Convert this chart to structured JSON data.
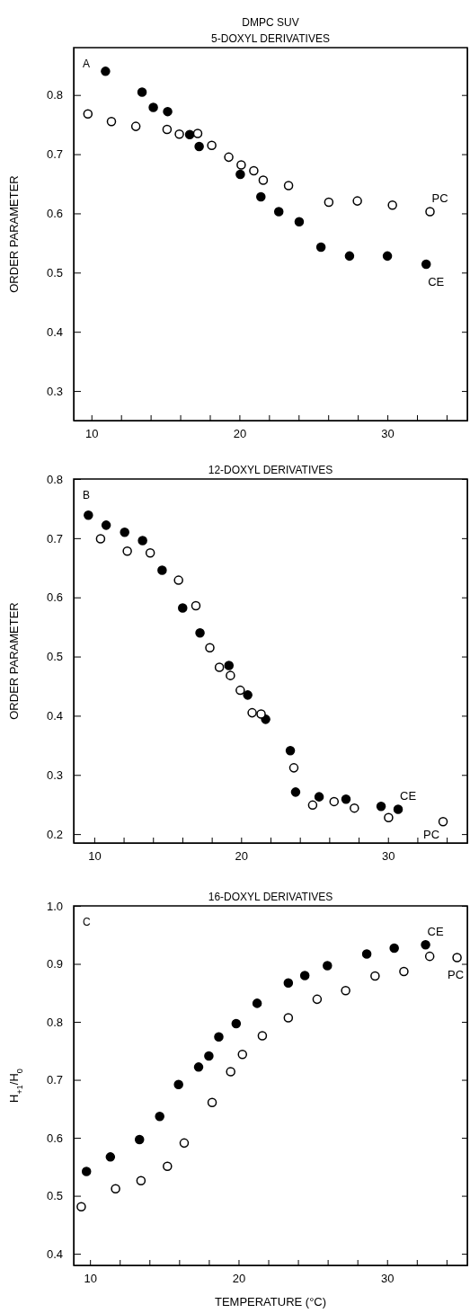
{
  "chart_data": [
    {
      "type": "scatter",
      "title": "DMPC SUV",
      "subtitle": "5-DOXYL DERIVATIVES",
      "ylabel": "ORDER PARAMETER",
      "annotations": [
        "A"
      ],
      "marker": "circle",
      "xlim": [
        8.8,
        35.4
      ],
      "ylim": [
        0.25,
        0.88
      ],
      "xticks": [
        10,
        {
          "value": 12,
          "label": null
        },
        {
          "value": 14,
          "label": null
        },
        {
          "value": 16,
          "label": null
        },
        {
          "value": 18,
          "label": null
        },
        20,
        {
          "value": 22,
          "label": null
        },
        {
          "value": 24,
          "label": null
        },
        {
          "value": 26,
          "label": null
        },
        {
          "value": 28,
          "label": null
        },
        30,
        {
          "value": 32,
          "label": null
        },
        {
          "value": 34,
          "label": null
        }
      ],
      "yticks": [
        0.3,
        0.4,
        0.5,
        0.6,
        0.7,
        0.8
      ],
      "series": [
        {
          "name": "CE",
          "color": "#000000",
          "x": [
            10.95,
            13.42,
            14.18,
            15.15,
            16.64,
            17.28,
            20.06,
            21.45,
            22.66,
            24.04,
            25.51,
            27.44,
            30.0,
            32.62
          ],
          "values": [
            0.84,
            0.805,
            0.779,
            0.772,
            0.733,
            0.713,
            0.666,
            0.628,
            0.603,
            0.586,
            0.543,
            0.528,
            0.528,
            0.514
          ]
        },
        {
          "name": "PC",
          "color": "#ffffff",
          "x": [
            9.76,
            11.35,
            13.0,
            15.11,
            15.94,
            17.18,
            18.13,
            19.28,
            20.12,
            20.97,
            21.61,
            23.32,
            26.04,
            27.97,
            30.34,
            32.88
          ],
          "values": [
            0.768,
            0.755,
            0.747,
            0.742,
            0.734,
            0.735,
            0.715,
            0.695,
            0.682,
            0.672,
            0.656,
            0.647,
            0.619,
            0.621,
            0.614,
            0.603
          ]
        }
      ]
    },
    {
      "type": "scatter",
      "title": "12-DOXYL DERIVATIVES",
      "ylabel": "ORDER PARAMETER",
      "annotations": [
        "B"
      ],
      "marker": "circle",
      "xlim": [
        8.6,
        35.4
      ],
      "ylim": [
        0.185,
        0.8
      ],
      "xticks": [
        10,
        {
          "value": 12,
          "label": null
        },
        {
          "value": 14,
          "label": null
        },
        {
          "value": 16,
          "label": null
        },
        {
          "value": 18,
          "label": null
        },
        20,
        {
          "value": 22,
          "label": null
        },
        {
          "value": 24,
          "label": null
        },
        {
          "value": 26,
          "label": null
        },
        {
          "value": 28,
          "label": null
        },
        30,
        {
          "value": 32,
          "label": null
        },
        {
          "value": 34,
          "label": null
        }
      ],
      "yticks": [
        0.2,
        0.3,
        0.4,
        0.5,
        0.6,
        0.7,
        0.8
      ],
      "series": [
        {
          "name": "CE",
          "color": "#000000",
          "x": [
            9.6,
            10.81,
            12.07,
            13.29,
            14.62,
            16.02,
            17.2,
            19.17,
            20.45,
            21.67,
            23.35,
            23.71,
            25.31,
            27.14,
            29.53,
            30.69
          ],
          "values": [
            0.739,
            0.722,
            0.71,
            0.696,
            0.646,
            0.582,
            0.54,
            0.485,
            0.435,
            0.394,
            0.341,
            0.271,
            0.263,
            0.259,
            0.247,
            0.242
          ]
        },
        {
          "name": "PC",
          "color": "#ffffff",
          "x": [
            10.43,
            12.25,
            13.81,
            15.74,
            16.92,
            17.87,
            18.52,
            19.27,
            19.94,
            20.75,
            21.36,
            23.59,
            24.87,
            26.33,
            27.71,
            30.04,
            33.75
          ],
          "values": [
            0.699,
            0.678,
            0.675,
            0.629,
            0.586,
            0.515,
            0.482,
            0.468,
            0.443,
            0.405,
            0.403,
            0.312,
            0.249,
            0.255,
            0.244,
            0.228,
            0.221
          ]
        }
      ]
    },
    {
      "type": "scatter",
      "title": "16-DOXYL DERIVATIVES",
      "xlabel": "TEMPERATURE (°C)",
      "ylabel": "H$_{+1}$/H$_{0}$",
      "annotations": [
        "C"
      ],
      "marker": "circle",
      "xlim": [
        8.9,
        35.4
      ],
      "ylim": [
        0.38,
        1.0
      ],
      "xticks": [
        10,
        {
          "value": 12,
          "label": null
        },
        {
          "value": 14,
          "label": null
        },
        {
          "value": 16,
          "label": null
        },
        {
          "value": 18,
          "label": null
        },
        20,
        {
          "value": 22,
          "label": null
        },
        {
          "value": 24,
          "label": null
        },
        {
          "value": 26,
          "label": null
        },
        {
          "value": 28,
          "label": null
        },
        30,
        {
          "value": 32,
          "label": null
        },
        {
          "value": 34,
          "label": null
        }
      ],
      "yticks": [
        0.4,
        0.5,
        0.6,
        0.7,
        0.8,
        0.9,
        {
          "value": 1.0,
          "label": "1.0"
        }
      ],
      "series": [
        {
          "name": "CE",
          "color": "#000000",
          "x": [
            9.76,
            11.37,
            13.33,
            14.69,
            15.96,
            17.31,
            18.0,
            18.67,
            19.84,
            21.25,
            23.35,
            24.46,
            25.98,
            28.63,
            30.48,
            32.59
          ],
          "values": [
            0.542,
            0.567,
            0.597,
            0.637,
            0.692,
            0.722,
            0.741,
            0.774,
            0.797,
            0.832,
            0.867,
            0.88,
            0.897,
            0.917,
            0.927,
            0.933
          ]
        },
        {
          "name": "PC",
          "color": "#ffffff",
          "x": [
            9.41,
            11.72,
            13.43,
            15.21,
            16.34,
            18.22,
            19.47,
            20.26,
            21.6,
            23.35,
            25.29,
            27.21,
            29.19,
            31.13,
            32.87,
            34.71
          ],
          "values": [
            0.481,
            0.512,
            0.526,
            0.551,
            0.591,
            0.661,
            0.714,
            0.744,
            0.776,
            0.807,
            0.839,
            0.854,
            0.879,
            0.887,
            0.913,
            0.911
          ]
        }
      ]
    }
  ]
}
